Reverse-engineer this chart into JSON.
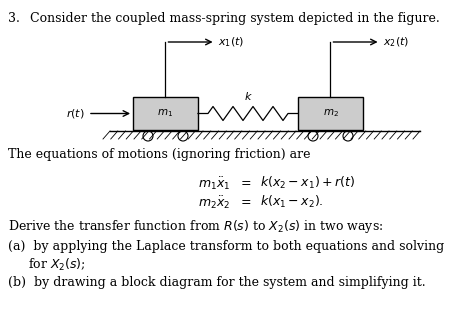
{
  "title_number": "3.",
  "title_text": "Consider the coupled mass-spring system depicted in the figure.",
  "eq_intro": "The equations of motions (ignoring friction) are",
  "derive_text": "Derive the transfer function from $R(s)$ to $X_2(s)$ in two ways:",
  "part_a1": "(a)  by applying the Laplace transform to both equations and solving",
  "part_a2": "for $X_2(s)$;",
  "part_b": "(b)  by drawing a block diagram for the system and simplifying it.",
  "bg_color": "#ffffff",
  "text_color": "#000000",
  "box_color": "#cccccc",
  "box_edge_color": "#000000"
}
